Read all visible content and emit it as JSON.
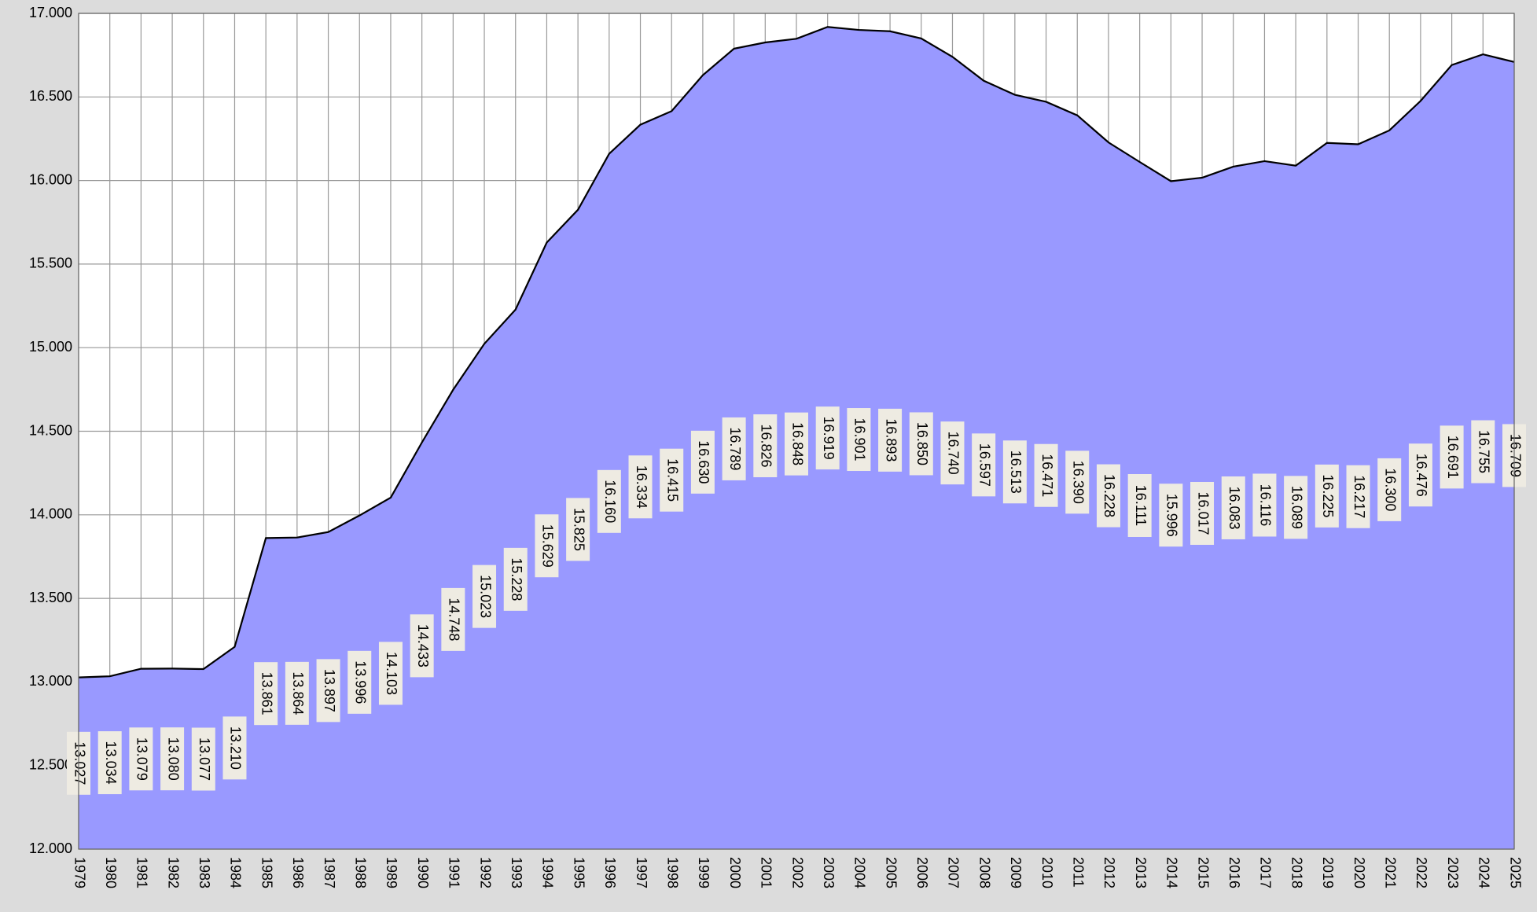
{
  "chart_data": {
    "type": "area",
    "categories": [
      "1979",
      "1980",
      "1981",
      "1982",
      "1983",
      "1984",
      "1985",
      "1986",
      "1987",
      "1988",
      "1989",
      "1990",
      "1991",
      "1992",
      "1993",
      "1994",
      "1995",
      "1996",
      "1997",
      "1998",
      "1999",
      "2000",
      "2001",
      "2002",
      "2003",
      "2004",
      "2005",
      "2006",
      "2007",
      "2008",
      "2009",
      "2010",
      "2011",
      "2012",
      "2013",
      "2014",
      "2015",
      "2016",
      "2017",
      "2018",
      "2019",
      "2020",
      "2021",
      "2022",
      "2023",
      "2024",
      "2025"
    ],
    "values": [
      13027,
      13034,
      13079,
      13080,
      13077,
      13210,
      13861,
      13864,
      13897,
      13996,
      14103,
      14433,
      14748,
      15023,
      15228,
      15629,
      15825,
      16160,
      16334,
      16415,
      16630,
      16789,
      16826,
      16848,
      16919,
      16901,
      16893,
      16850,
      16740,
      16597,
      16513,
      16471,
      16390,
      16228,
      16111,
      15996,
      16017,
      16083,
      16116,
      16089,
      16225,
      16217,
      16300,
      16476,
      16691,
      16755,
      16709
    ],
    "value_labels": [
      "13.027",
      "13.034",
      "13.079",
      "13.080",
      "13.077",
      "13.210",
      "13.861",
      "13.864",
      "13.897",
      "13.996",
      "14.103",
      "14.433",
      "14.748",
      "15.023",
      "15.228",
      "15.629",
      "15.825",
      "16.160",
      "16.334",
      "16.415",
      "16.630",
      "16.789",
      "16.826",
      "16.848",
      "16.919",
      "16.901",
      "16.893",
      "16.850",
      "16.740",
      "16.597",
      "16.513",
      "16.471",
      "16.390",
      "16.228",
      "16.111",
      "15.996",
      "16.017",
      "16.083",
      "16.116",
      "16.089",
      "16.225",
      "16.217",
      "16.300",
      "16.476",
      "16.691",
      "16.755",
      "16.709"
    ],
    "color": "#9999ff",
    "ylim": [
      12000,
      17000
    ],
    "yticks": [
      {
        "value": 12000,
        "label": "12.000"
      },
      {
        "value": 12500,
        "label": "12.500"
      },
      {
        "value": 13000,
        "label": "13.000"
      },
      {
        "value": 13500,
        "label": "13.500"
      },
      {
        "value": 14000,
        "label": "14.000"
      },
      {
        "value": 14500,
        "label": "14.500"
      },
      {
        "value": 15000,
        "label": "15.000"
      },
      {
        "value": 15500,
        "label": "15.500"
      },
      {
        "value": 16000,
        "label": "16.000"
      },
      {
        "value": 16500,
        "label": "16.500"
      },
      {
        "value": 17000,
        "label": "17.000"
      }
    ],
    "grid": true
  }
}
